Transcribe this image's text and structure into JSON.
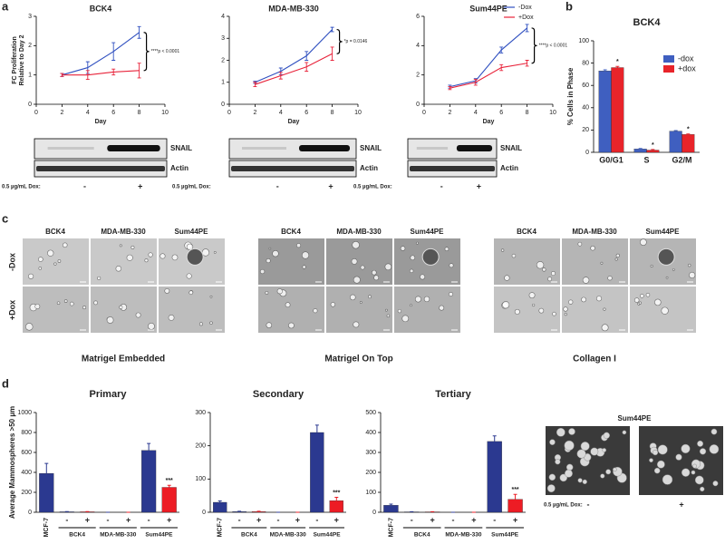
{
  "panel_labels": [
    "a",
    "b",
    "c",
    "d"
  ],
  "chart_data": [
    {
      "type": "line",
      "title": "BCK4",
      "xlabel": "Day",
      "ylabel": [
        "FC Proliferation",
        "Relative to Day 2"
      ],
      "x": [
        2,
        4,
        6,
        8
      ],
      "xlim": [
        0,
        10
      ],
      "xticks": [
        0,
        2,
        4,
        6,
        8,
        10
      ],
      "ylim": [
        0,
        3
      ],
      "yticks": [
        0,
        1,
        2,
        3
      ],
      "annotation": "****p < 0.0001",
      "series": [
        {
          "name": "-Dox",
          "color": "#3050c0",
          "values": [
            1,
            1.25,
            1.8,
            2.45
          ],
          "errors": [
            0.05,
            0.2,
            0.3,
            0.2
          ]
        },
        {
          "name": "+Dox",
          "color": "#e8233a",
          "values": [
            1,
            1.0,
            1.1,
            1.15
          ],
          "errors": [
            0.05,
            0.15,
            0.1,
            0.25
          ]
        }
      ]
    },
    {
      "type": "line",
      "title": "MDA-MB-330",
      "xlabel": "Day",
      "x": [
        2,
        4,
        6,
        8
      ],
      "xlim": [
        0,
        10
      ],
      "xticks": [
        0,
        2,
        4,
        6,
        8,
        10
      ],
      "ylim": [
        0,
        4
      ],
      "yticks": [
        0,
        1,
        2,
        3,
        4
      ],
      "annotation": "*p = 0.0146",
      "series": [
        {
          "name": "-Dox",
          "color": "#3050c0",
          "values": [
            1.0,
            1.5,
            2.2,
            3.4
          ],
          "errors": [
            0.05,
            0.15,
            0.2,
            0.1
          ]
        },
        {
          "name": "+Dox",
          "color": "#e8233a",
          "values": [
            0.9,
            1.3,
            1.7,
            2.3
          ],
          "errors": [
            0.1,
            0.15,
            0.2,
            0.3
          ]
        }
      ]
    },
    {
      "type": "line",
      "title": "Sum44PE",
      "xlabel": "Day",
      "x": [
        2,
        4,
        6,
        8
      ],
      "xlim": [
        0,
        10
      ],
      "xticks": [
        0,
        2,
        4,
        6,
        8,
        10
      ],
      "ylim": [
        0,
        6
      ],
      "yticks": [
        0,
        2,
        4,
        6
      ],
      "annotation": "****p < 0.0001",
      "legend": "upper right",
      "series": [
        {
          "name": "-Dox",
          "color": "#3050c0",
          "values": [
            1.2,
            1.6,
            3.7,
            5.2
          ],
          "errors": [
            0.1,
            0.15,
            0.2,
            0.25
          ]
        },
        {
          "name": "+Dox",
          "color": "#e8233a",
          "values": [
            1.1,
            1.5,
            2.5,
            2.8
          ],
          "errors": [
            0.1,
            0.2,
            0.2,
            0.2
          ]
        }
      ]
    },
    {
      "type": "bar",
      "title": "BCK4",
      "ylabel": "% Cells in Phase",
      "categories": [
        "G0/G1",
        "S",
        "G2/M"
      ],
      "ylim": [
        0,
        100
      ],
      "yticks": [
        0,
        20,
        40,
        60,
        80,
        100
      ],
      "legend": "upper right",
      "series": [
        {
          "name": "-dox",
          "color": "#3f5fc0",
          "values": [
            73,
            3,
            19
          ],
          "errors": [
            1,
            0.5,
            0.5
          ]
        },
        {
          "name": "+dox",
          "color": "#e8242a",
          "values": [
            76,
            2,
            16
          ],
          "errors": [
            1,
            0.5,
            0.5
          ],
          "markers": [
            "*",
            "*",
            "*"
          ]
        }
      ]
    },
    {
      "type": "bar",
      "title": "Primary",
      "ylabel": "Average Mammospheres >50 µm",
      "categories": [
        "MCF-7",
        "-",
        "+",
        "-",
        "+",
        "-",
        "+"
      ],
      "groups": [
        "BCK4",
        "MDA-MB-330",
        "Sum44PE"
      ],
      "ylim": [
        0,
        1000
      ],
      "yticks": [
        0,
        200,
        400,
        600,
        800,
        1000
      ],
      "series": [
        {
          "values": [
            390,
            5,
            5,
            0,
            0,
            620,
            250
          ],
          "errors": [
            100,
            2,
            2,
            0,
            0,
            70,
            20
          ],
          "colors": [
            "#2b3990",
            "#2b3990",
            "#ed1c24",
            "#2b3990",
            "#ed1c24",
            "#2b3990",
            "#ed1c24"
          ],
          "markers": [
            null,
            null,
            null,
            null,
            null,
            null,
            "***"
          ]
        }
      ]
    },
    {
      "type": "bar",
      "title": "Secondary",
      "categories": [
        "MCF-7",
        "-",
        "+",
        "-",
        "+",
        "-",
        "+"
      ],
      "groups": [
        "BCK4",
        "MDA-MB-330",
        "Sum44PE"
      ],
      "ylim": [
        0,
        300
      ],
      "yticks": [
        0,
        100,
        200,
        300
      ],
      "series": [
        {
          "values": [
            30,
            2,
            2,
            0,
            0,
            240,
            35
          ],
          "errors": [
            4,
            1,
            1,
            0,
            0,
            22,
            10
          ],
          "colors": [
            "#2b3990",
            "#2b3990",
            "#ed1c24",
            "#2b3990",
            "#ed1c24",
            "#2b3990",
            "#ed1c24"
          ],
          "markers": [
            null,
            null,
            null,
            null,
            null,
            null,
            "***"
          ]
        }
      ]
    },
    {
      "type": "bar",
      "title": "Tertiary",
      "categories": [
        "MCF-7",
        "-",
        "+",
        "-",
        "+",
        "-",
        "+"
      ],
      "groups": [
        "BCK4",
        "MDA-MB-330",
        "Sum44PE"
      ],
      "ylim": [
        0,
        500
      ],
      "yticks": [
        0,
        100,
        200,
        300,
        400,
        500
      ],
      "series": [
        {
          "values": [
            35,
            2,
            2,
            0,
            0,
            355,
            65
          ],
          "errors": [
            6,
            1,
            1,
            0,
            0,
            28,
            25
          ],
          "colors": [
            "#2b3990",
            "#2b3990",
            "#ed1c24",
            "#2b3990",
            "#ed1c24",
            "#2b3990",
            "#ed1c24"
          ],
          "markers": [
            null,
            null,
            null,
            null,
            null,
            null,
            "***"
          ]
        }
      ]
    }
  ],
  "blots": [
    {
      "bands": [
        "SNAIL",
        "Actin"
      ],
      "dox_label": "0.5 µg/mL Dox:",
      "conditions": [
        "-",
        "+"
      ]
    },
    {
      "bands": [
        "SNAIL",
        "Actin"
      ],
      "dox_label": "0.5 µg/mL Dox:",
      "conditions": [
        "-",
        "+"
      ]
    },
    {
      "bands": [
        "SNAIL",
        "Actin"
      ],
      "dox_label": "0.5 µg/mL Dox:",
      "conditions": [
        "-",
        "+"
      ]
    }
  ],
  "panel_c": {
    "rows": [
      "-Dox",
      "+Dox"
    ],
    "groups": [
      {
        "columns": [
          "BCK4",
          "MDA-MB-330",
          "Sum44PE"
        ],
        "caption": "Matrigel Embedded"
      },
      {
        "columns": [
          "BCK4",
          "MDA-MB-330",
          "Sum44PE"
        ],
        "caption": "Matrigel On Top"
      },
      {
        "columns": [
          "BCK4",
          "MDA-MB-330",
          "Sum44PE"
        ],
        "caption": "Collagen I"
      }
    ]
  },
  "panel_d_images": {
    "title": "Sum44PE",
    "dox_label": "0.5 µg/mL Dox:",
    "conditions": [
      "-",
      "+"
    ]
  }
}
